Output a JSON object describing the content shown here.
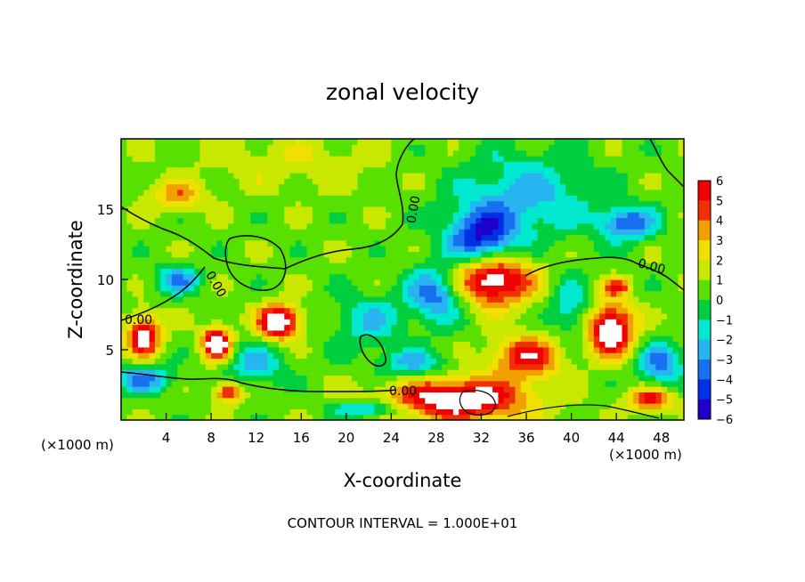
{
  "chart_data": {
    "type": "heatmap",
    "title": "zonal velocity",
    "xlabel": "X-coordinate",
    "ylabel": "Z-coordinate",
    "x_unit": "(×1000 m)",
    "z_unit": "(×1000 m)",
    "xlim": [
      0,
      50
    ],
    "ylim": [
      0,
      20
    ],
    "xticks": [
      "4",
      "8",
      "12",
      "16",
      "20",
      "24",
      "28",
      "32",
      "36",
      "40",
      "44",
      "48"
    ],
    "yticks": [
      "5",
      "10",
      "15"
    ],
    "colorbar": {
      "range": [
        -6,
        6
      ],
      "ticks": [
        "6",
        "5",
        "4",
        "3",
        "2",
        "1",
        "0",
        "−1",
        "−2",
        "−3",
        "−4",
        "−5",
        "−6"
      ]
    },
    "contour_label": "0.00",
    "footer": "CONTOUR INTERVAL = 1.000E+01",
    "field_features": [
      {
        "x": 5,
        "z": 16,
        "value": 3.0,
        "sx": 2.5,
        "sz": 1.0
      },
      {
        "x": 15,
        "z": 18.5,
        "value": 1.2,
        "sx": 8,
        "sz": 2
      },
      {
        "x": 2,
        "z": 6,
        "value": 6.0,
        "sx": 1.5,
        "sz": 1.5
      },
      {
        "x": 8.5,
        "z": 5.5,
        "value": 8.0,
        "sx": 1.2,
        "sz": 1.1
      },
      {
        "x": 14,
        "z": 7,
        "value": 7.5,
        "sx": 1.8,
        "sz": 1.2
      },
      {
        "x": 9.5,
        "z": 2,
        "value": 5.0,
        "sx": 1.2,
        "sz": 0.7
      },
      {
        "x": 33,
        "z": 10,
        "value": 7.0,
        "sx": 3.5,
        "sz": 1.8
      },
      {
        "x": 30,
        "z": 1.5,
        "value": 7.0,
        "sx": 6,
        "sz": 1.5
      },
      {
        "x": 36,
        "z": 4.5,
        "value": 5.0,
        "sx": 3,
        "sz": 1.5
      },
      {
        "x": 43.5,
        "z": 6.5,
        "value": 7.5,
        "sx": 2,
        "sz": 1.8
      },
      {
        "x": 44,
        "z": 9.5,
        "value": 4.0,
        "sx": 1.2,
        "sz": 0.6
      },
      {
        "x": 47,
        "z": 1.5,
        "value": 5.0,
        "sx": 2,
        "sz": 0.8
      },
      {
        "x": 32,
        "z": 13,
        "value": -5.5,
        "sx": 3,
        "sz": 2
      },
      {
        "x": 28,
        "z": 9,
        "value": -4.5,
        "sx": 2.5,
        "sz": 2
      },
      {
        "x": 45,
        "z": 14,
        "value": -4.5,
        "sx": 2.5,
        "sz": 1.2
      },
      {
        "x": 36,
        "z": 16,
        "value": -3.0,
        "sx": 6,
        "sz": 3
      },
      {
        "x": 5,
        "z": 10,
        "value": -3.5,
        "sx": 2,
        "sz": 1
      },
      {
        "x": 2,
        "z": 3,
        "value": -4.0,
        "sx": 2.5,
        "sz": 1
      },
      {
        "x": 22,
        "z": 7,
        "value": -2.5,
        "sx": 3,
        "sz": 2
      },
      {
        "x": 26,
        "z": 4,
        "value": -3.0,
        "sx": 3,
        "sz": 1
      },
      {
        "x": 12,
        "z": 4,
        "value": -3.0,
        "sx": 2.5,
        "sz": 1.5
      },
      {
        "x": 40,
        "z": 8,
        "value": -2.5,
        "sx": 2,
        "sz": 2
      },
      {
        "x": 48,
        "z": 4,
        "value": -4.0,
        "sx": 2,
        "sz": 1.5
      },
      {
        "x": 22,
        "z": 0.8,
        "value": -3.5,
        "sx": 3,
        "sz": 0.6
      }
    ]
  }
}
